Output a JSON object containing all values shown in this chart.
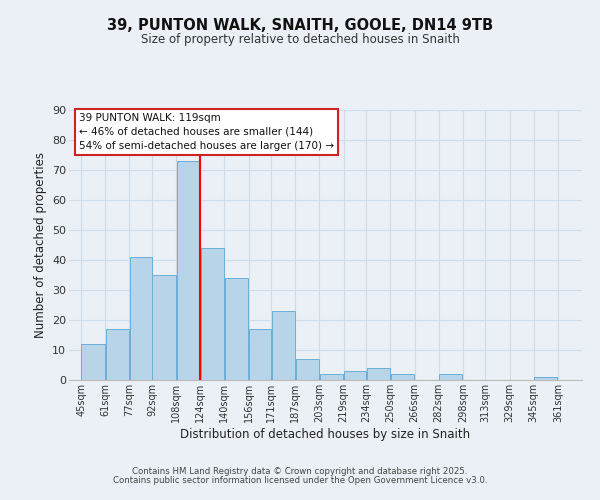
{
  "title": "39, PUNTON WALK, SNAITH, GOOLE, DN14 9TB",
  "subtitle": "Size of property relative to detached houses in Snaith",
  "xlabel": "Distribution of detached houses by size in Snaith",
  "ylabel": "Number of detached properties",
  "bar_left_edges": [
    45,
    61,
    77,
    92,
    108,
    124,
    140,
    156,
    171,
    187,
    203,
    219,
    234,
    250,
    266,
    282,
    298,
    313,
    329,
    345
  ],
  "bar_widths": [
    16,
    16,
    15,
    16,
    16,
    16,
    16,
    15,
    16,
    16,
    16,
    15,
    16,
    16,
    16,
    16,
    15,
    16,
    16,
    16
  ],
  "bar_heights": [
    12,
    17,
    41,
    35,
    73,
    44,
    34,
    17,
    23,
    7,
    2,
    3,
    4,
    2,
    0,
    2,
    0,
    0,
    0,
    1
  ],
  "tick_labels": [
    "45sqm",
    "61sqm",
    "77sqm",
    "92sqm",
    "108sqm",
    "124sqm",
    "140sqm",
    "156sqm",
    "171sqm",
    "187sqm",
    "203sqm",
    "219sqm",
    "234sqm",
    "250sqm",
    "266sqm",
    "282sqm",
    "298sqm",
    "313sqm",
    "329sqm",
    "345sqm",
    "361sqm"
  ],
  "tick_positions": [
    45,
    61,
    77,
    92,
    108,
    124,
    140,
    156,
    171,
    187,
    203,
    219,
    234,
    250,
    266,
    282,
    298,
    313,
    329,
    345,
    361
  ],
  "ylim": [
    0,
    90
  ],
  "xlim": [
    37,
    377
  ],
  "bar_color": "#b8d4e8",
  "bar_edge_color": "#6aaed6",
  "grid_color": "#d0dce8",
  "bg_color": "#eaf0f6",
  "red_line_x": 124,
  "annotation_lines": [
    "39 PUNTON WALK: 119sqm",
    "← 46% of detached houses are smaller (144)",
    "54% of semi-detached houses are larger (170) →"
  ],
  "footer_lines": [
    "Contains HM Land Registry data © Crown copyright and database right 2025.",
    "Contains public sector information licensed under the Open Government Licence v3.0."
  ]
}
